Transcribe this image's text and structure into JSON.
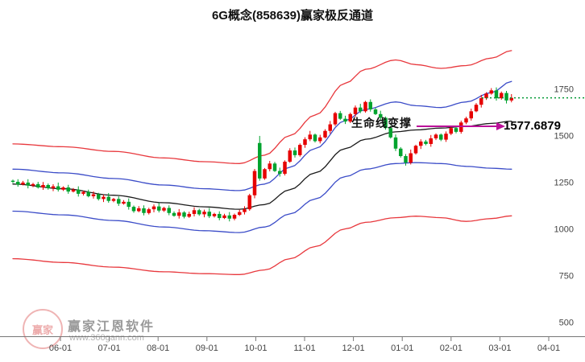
{
  "title": "6G概念(858639)赢家极反通道",
  "annotations": {
    "lifeline_label": "生命线变撑",
    "price_label": "1577.6879",
    "arrow_color": "#bb1199",
    "current_price": 1702,
    "current_price_color": "#009933"
  },
  "watermark": {
    "brand": "赢家江恩软件",
    "url": "www.360gann.com",
    "seal_text": "赢家"
  },
  "chart_data": {
    "type": "candlestick",
    "title": "6G概念(858639)赢家极反通道",
    "x_ticks": [
      "06-01",
      "07-01",
      "08-01",
      "09-01",
      "10-01",
      "11-01",
      "12-01",
      "01-01",
      "02-01",
      "03-01",
      "04-01"
    ],
    "y_ticks": [
      500,
      750,
      1000,
      1250,
      1500,
      1750
    ],
    "y_axis": {
      "min": 500,
      "max": 1750
    },
    "legend": "none",
    "grid": false,
    "colors": {
      "up": "#e60000",
      "down": "#00a32e"
    },
    "lifeline_value": 1577.6879,
    "bands": [
      {
        "name": "outer-upper-red",
        "color": "#e8383d",
        "idx": [
          0,
          10,
          20,
          30,
          38,
          45,
          50,
          55,
          60,
          66,
          70,
          76,
          80,
          85,
          90,
          95,
          99
        ],
        "values": [
          1455,
          1440,
          1415,
          1380,
          1360,
          1350,
          1395,
          1500,
          1610,
          1780,
          1855,
          1905,
          1880,
          1860,
          1875,
          1915,
          1955
        ]
      },
      {
        "name": "inner-upper-blue",
        "color": "#3b4cc8",
        "idx": [
          0,
          10,
          20,
          30,
          38,
          45,
          50,
          55,
          60,
          66,
          70,
          76,
          80,
          85,
          90,
          95,
          99
        ],
        "values": [
          1320,
          1300,
          1270,
          1235,
          1215,
          1205,
          1240,
          1330,
          1430,
          1580,
          1640,
          1680,
          1660,
          1650,
          1680,
          1730,
          1790
        ]
      },
      {
        "name": "lifeline-black",
        "color": "#1a1a1a",
        "idx": [
          0,
          10,
          20,
          30,
          38,
          45,
          50,
          55,
          60,
          66,
          70,
          76,
          80,
          85,
          90,
          95,
          99
        ],
        "values": [
          1240,
          1215,
          1180,
          1140,
          1118,
          1105,
          1130,
          1210,
          1300,
          1430,
          1480,
          1520,
          1530,
          1540,
          1550,
          1565,
          1577
        ]
      },
      {
        "name": "inner-lower-blue",
        "color": "#3b4cc8",
        "idx": [
          0,
          10,
          20,
          30,
          38,
          45,
          50,
          55,
          60,
          66,
          70,
          76,
          80,
          85,
          90,
          95,
          99
        ],
        "values": [
          1095,
          1075,
          1045,
          1010,
          990,
          980,
          1010,
          1080,
          1160,
          1280,
          1320,
          1350,
          1355,
          1350,
          1335,
          1325,
          1320
        ]
      },
      {
        "name": "outer-lower-red",
        "color": "#e8383d",
        "idx": [
          0,
          10,
          20,
          30,
          38,
          45,
          50,
          55,
          60,
          66,
          70,
          76,
          80,
          85,
          90,
          95,
          99
        ],
        "values": [
          840,
          820,
          795,
          770,
          760,
          755,
          780,
          840,
          905,
          1000,
          1035,
          1060,
          1068,
          1060,
          1040,
          1055,
          1070
        ]
      }
    ],
    "candles": [
      [
        1258,
        1264,
        1245,
        1252
      ],
      [
        1252,
        1266,
        1226,
        1238
      ],
      [
        1238,
        1257,
        1233,
        1248
      ],
      [
        1248,
        1266,
        1217,
        1232
      ],
      [
        1232,
        1247,
        1223,
        1240
      ],
      [
        1240,
        1252,
        1216,
        1222
      ],
      [
        1222,
        1251,
        1209,
        1235
      ],
      [
        1235,
        1243,
        1210,
        1218
      ],
      [
        1218,
        1239,
        1202,
        1228
      ],
      [
        1228,
        1248,
        1200,
        1210
      ],
      [
        1210,
        1228,
        1203,
        1222
      ],
      [
        1222,
        1236,
        1188,
        1200
      ],
      [
        1200,
        1219,
        1195,
        1210
      ],
      [
        1210,
        1228,
        1173,
        1188
      ],
      [
        1188,
        1205,
        1179,
        1198
      ],
      [
        1198,
        1210,
        1169,
        1175
      ],
      [
        1175,
        1201,
        1162,
        1185
      ],
      [
        1185,
        1193,
        1152,
        1160
      ],
      [
        1160,
        1183,
        1144,
        1172
      ],
      [
        1172,
        1192,
        1140,
        1150
      ],
      [
        1150,
        1166,
        1143,
        1160
      ],
      [
        1160,
        1174,
        1123,
        1135
      ],
      [
        1135,
        1154,
        1130,
        1145
      ],
      [
        1145,
        1163,
        1103,
        1118
      ],
      [
        1118,
        1125,
        1086,
        1095
      ],
      [
        1095,
        1122,
        1089,
        1110
      ],
      [
        1110,
        1126,
        1072,
        1085
      ],
      [
        1085,
        1113,
        1077,
        1105
      ],
      [
        1105,
        1131,
        1089,
        1120
      ],
      [
        1120,
        1140,
        1088,
        1098
      ],
      [
        1098,
        1118,
        1091,
        1112
      ],
      [
        1112,
        1126,
        1073,
        1085
      ],
      [
        1085,
        1094,
        1065,
        1070
      ],
      [
        1070,
        1106,
        1055,
        1088
      ],
      [
        1088,
        1095,
        1056,
        1065
      ],
      [
        1065,
        1092,
        1059,
        1080
      ],
      [
        1080,
        1116,
        1067,
        1100
      ],
      [
        1100,
        1108,
        1070,
        1078
      ],
      [
        1078,
        1103,
        1062,
        1092
      ],
      [
        1092,
        1112,
        1058,
        1068
      ],
      [
        1068,
        1086,
        1061,
        1080
      ],
      [
        1080,
        1094,
        1046,
        1058
      ],
      [
        1058,
        1081,
        1053,
        1072
      ],
      [
        1072,
        1090,
        1040,
        1055
      ],
      [
        1055,
        1082,
        1046,
        1075
      ],
      [
        1075,
        1102,
        1069,
        1090
      ],
      [
        1090,
        1121,
        1077,
        1105
      ],
      [
        1105,
        1188,
        1097,
        1180
      ],
      [
        1180,
        1321,
        1164,
        1310
      ],
      [
        1460,
        1498,
        1258,
        1270
      ],
      [
        1270,
        1326,
        1263,
        1320
      ],
      [
        1320,
        1364,
        1308,
        1350
      ],
      [
        1350,
        1359,
        1305,
        1310
      ],
      [
        1310,
        1328,
        1280,
        1295
      ],
      [
        1295,
        1367,
        1286,
        1360
      ],
      [
        1360,
        1432,
        1354,
        1420
      ],
      [
        1420,
        1436,
        1382,
        1395
      ],
      [
        1395,
        1458,
        1387,
        1450
      ],
      [
        1450,
        1491,
        1434,
        1480
      ],
      [
        1480,
        1525,
        1470,
        1505
      ],
      [
        1505,
        1511,
        1463,
        1470
      ],
      [
        1470,
        1504,
        1458,
        1490
      ],
      [
        1490,
        1534,
        1485,
        1525
      ],
      [
        1525,
        1578,
        1510,
        1560
      ],
      [
        1560,
        1627,
        1551,
        1620
      ],
      [
        1620,
        1632,
        1584,
        1590
      ],
      [
        1590,
        1606,
        1562,
        1575
      ],
      [
        1575,
        1623,
        1567,
        1615
      ],
      [
        1615,
        1661,
        1599,
        1650
      ],
      [
        1650,
        1670,
        1620,
        1630
      ],
      [
        1630,
        1686,
        1623,
        1680
      ],
      [
        1680,
        1694,
        1628,
        1640
      ],
      [
        1640,
        1649,
        1610,
        1615
      ],
      [
        1615,
        1633,
        1580,
        1595
      ],
      [
        1595,
        1602,
        1531,
        1540
      ],
      [
        1540,
        1552,
        1484,
        1490
      ],
      [
        1490,
        1506,
        1417,
        1430
      ],
      [
        1430,
        1438,
        1382,
        1390
      ],
      [
        1390,
        1401,
        1339,
        1355
      ],
      [
        1355,
        1425,
        1345,
        1405
      ],
      [
        1405,
        1451,
        1398,
        1445
      ],
      [
        1445,
        1480,
        1428,
        1468
      ],
      [
        1468,
        1477,
        1448,
        1455
      ],
      [
        1455,
        1503,
        1440,
        1485
      ],
      [
        1485,
        1512,
        1476,
        1505
      ],
      [
        1505,
        1511,
        1470,
        1478
      ],
      [
        1478,
        1522,
        1466,
        1510
      ],
      [
        1510,
        1548,
        1502,
        1540
      ],
      [
        1540,
        1551,
        1512,
        1520
      ],
      [
        1520,
        1580,
        1510,
        1570
      ],
      [
        1570,
        1601,
        1561,
        1592
      ],
      [
        1592,
        1644,
        1580,
        1630
      ],
      [
        1630,
        1674,
        1625,
        1665
      ],
      [
        1665,
        1718,
        1650,
        1700
      ],
      [
        1700,
        1732,
        1691,
        1725
      ],
      [
        1725,
        1754,
        1719,
        1742
      ],
      [
        1742,
        1758,
        1687,
        1700
      ],
      [
        1700,
        1736,
        1692,
        1728
      ],
      [
        1728,
        1739,
        1672,
        1688
      ],
      [
        1688,
        1722,
        1678,
        1702
      ]
    ]
  }
}
